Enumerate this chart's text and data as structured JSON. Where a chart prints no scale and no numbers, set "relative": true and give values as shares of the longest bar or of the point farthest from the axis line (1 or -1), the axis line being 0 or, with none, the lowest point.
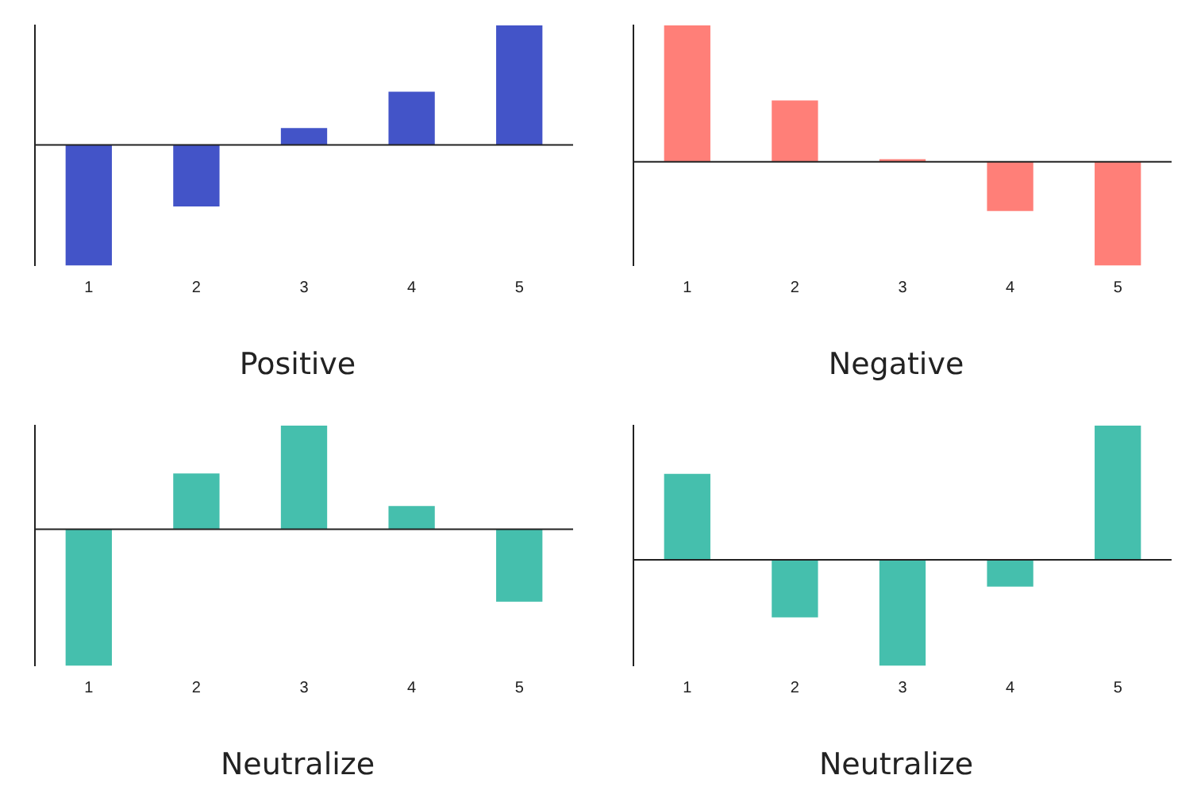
{
  "chart_data": [
    {
      "type": "bar",
      "relative": true,
      "xlabel": "Positive",
      "categories": [
        "1",
        "2",
        "3",
        "4",
        "5"
      ],
      "values": [
        -1,
        -0.51,
        0.14,
        0.44,
        0.99
      ],
      "color": "#4354c8",
      "grid": false,
      "legend": false
    },
    {
      "type": "bar",
      "relative": true,
      "xlabel": "Negative",
      "categories": [
        "1",
        "2",
        "3",
        "4",
        "5"
      ],
      "values": [
        1,
        0.45,
        0.02,
        -0.36,
        -0.76
      ],
      "color": "#ff7f78",
      "grid": false,
      "legend": false
    },
    {
      "type": "bar",
      "relative": true,
      "xlabel": "Neutralize",
      "categories": [
        "1",
        "2",
        "3",
        "4",
        "5"
      ],
      "values": [
        -1,
        0.41,
        0.76,
        0.17,
        -0.53
      ],
      "color": "#45bfad",
      "grid": false,
      "legend": false
    },
    {
      "type": "bar",
      "relative": true,
      "xlabel": "Neutralize",
      "categories": [
        "1",
        "2",
        "3",
        "4",
        "5"
      ],
      "values": [
        0.64,
        -0.43,
        -0.79,
        -0.2,
        1
      ],
      "color": "#45bfad",
      "grid": false,
      "legend": false
    }
  ]
}
